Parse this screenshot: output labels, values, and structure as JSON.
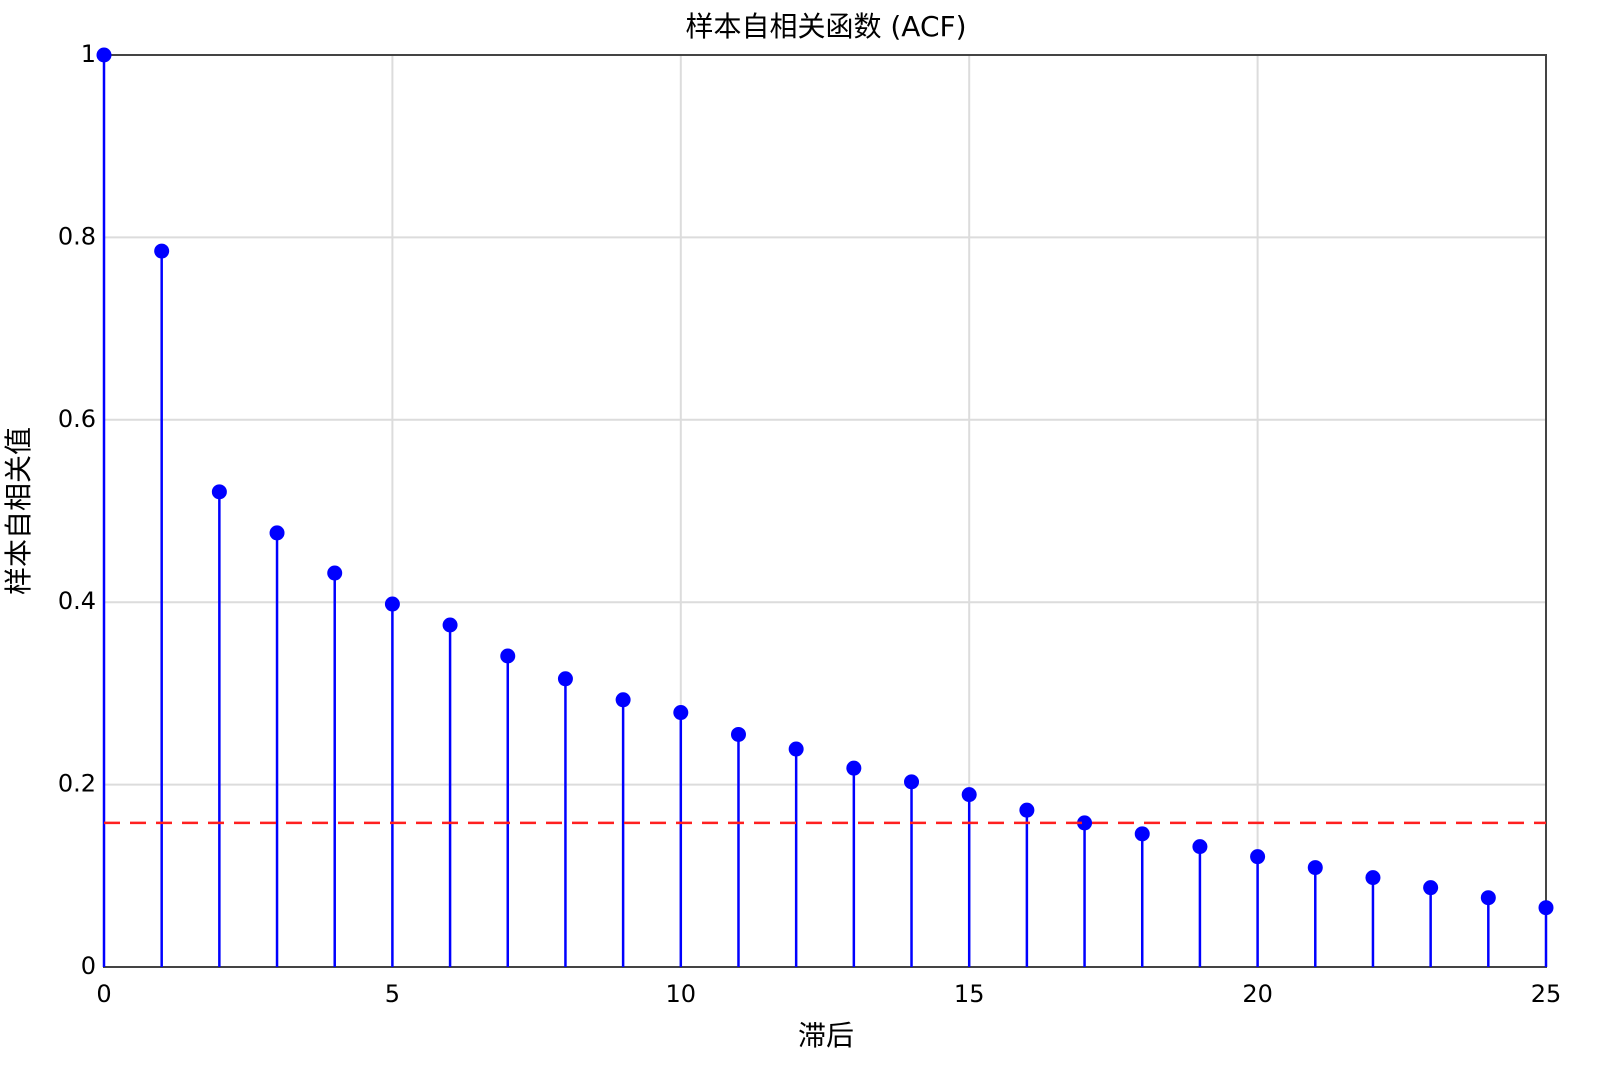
{
  "chart_data": {
    "type": "stem",
    "title": "样本自相关函数 (ACF)",
    "x_label": "滞后",
    "y_label": "样本自相关值",
    "x": [
      0,
      1,
      2,
      3,
      4,
      5,
      6,
      7,
      8,
      9,
      10,
      11,
      12,
      13,
      14,
      15,
      16,
      17,
      18,
      19,
      20,
      21,
      22,
      23,
      24,
      25
    ],
    "values": [
      1,
      0.785,
      0.521,
      0.476,
      0.432,
      0.398,
      0.375,
      0.341,
      0.316,
      0.293,
      0.279,
      0.255,
      0.239,
      0.218,
      0.203,
      0.189,
      0.172,
      0.158,
      0.146,
      0.132,
      0.121,
      0.109,
      0.098,
      0.087,
      0.076,
      0.065
    ],
    "color": "#0000ff",
    "reference_line": {
      "value": 0.158,
      "color": "#ff2020"
    },
    "xlim": [
      0,
      25
    ],
    "xticks": [
      0,
      5,
      10,
      15,
      20,
      25
    ],
    "ylim": [
      0,
      1
    ],
    "yticks": [
      0,
      0.2,
      0.4,
      0.6,
      0.8,
      1
    ],
    "grid": true
  }
}
